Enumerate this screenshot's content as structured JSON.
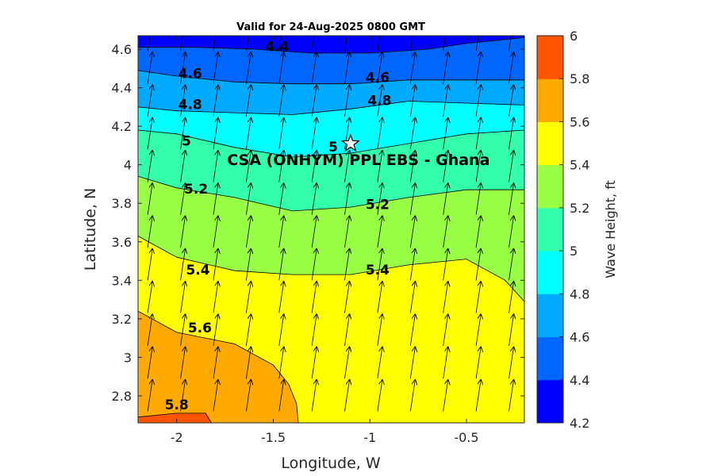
{
  "chart_data": {
    "type": "contour",
    "title": "Valid for 24-Aug-2025 0800 GMT",
    "xlabel": "Longitude, W",
    "ylabel": "Latitude, N",
    "colorbar_label": "Wave Height, ft",
    "xlim": [
      -2.2,
      -0.2
    ],
    "ylim": [
      2.66,
      4.67
    ],
    "x_ticks": [
      -2,
      -1.5,
      -1,
      -0.5
    ],
    "x_tick_labels": [
      "-2",
      "-1.5",
      "-1",
      "-0.5"
    ],
    "y_ticks": [
      2.8,
      3.0,
      3.2,
      3.4,
      3.6,
      3.8,
      4.0,
      4.2,
      4.4,
      4.6
    ],
    "y_tick_labels": [
      "2.8",
      "3",
      "3.2",
      "3.4",
      "3.6",
      "3.8",
      "4",
      "4.2",
      "4.4",
      "4.6"
    ],
    "colorbar": {
      "levels": [
        4.2,
        4.4,
        4.6,
        4.8,
        5.0,
        5.2,
        5.4,
        5.6,
        5.8,
        6.0
      ],
      "tick_labels": [
        "4.2",
        "4.4",
        "4.6",
        "4.8",
        "5",
        "5.2",
        "5.4",
        "5.6",
        "5.8",
        "6"
      ],
      "colors": [
        "#0000ff",
        "#0066ff",
        "#00aaff",
        "#00ffff",
        "#33ffaa",
        "#99ff44",
        "#ffff00",
        "#ffaa00",
        "#ff5500"
      ]
    },
    "contours": [
      {
        "value": 4.4,
        "x": [
          -2.2,
          -1.9,
          -1.6,
          -1.3,
          -1.0,
          -0.7,
          -0.5,
          -0.2
        ],
        "y": [
          4.61,
          4.61,
          4.6,
          4.58,
          4.58,
          4.6,
          4.63,
          4.66
        ]
      },
      {
        "value": 4.6,
        "x": [
          -2.2,
          -2.0,
          -1.7,
          -1.4,
          -1.1,
          -0.8,
          -0.5,
          -0.2
        ],
        "y": [
          4.49,
          4.46,
          4.43,
          4.42,
          4.42,
          4.44,
          4.44,
          4.44
        ]
      },
      {
        "value": 4.8,
        "x": [
          -2.2,
          -2.0,
          -1.7,
          -1.4,
          -1.1,
          -0.8,
          -0.5,
          -0.2
        ],
        "y": [
          4.3,
          4.28,
          4.27,
          4.26,
          4.29,
          4.33,
          4.32,
          4.31
        ]
      },
      {
        "value": 5.0,
        "x": [
          -2.2,
          -2.0,
          -1.7,
          -1.4,
          -1.1,
          -0.8,
          -0.5,
          -0.2
        ],
        "y": [
          4.18,
          4.16,
          4.09,
          4.04,
          4.06,
          4.11,
          4.16,
          4.18
        ]
      },
      {
        "value": 5.2,
        "x": [
          -2.2,
          -2.0,
          -1.7,
          -1.4,
          -1.1,
          -0.8,
          -0.5,
          -0.2
        ],
        "y": [
          3.94,
          3.88,
          3.83,
          3.76,
          3.78,
          3.83,
          3.87,
          3.87
        ]
      },
      {
        "value": 5.4,
        "x": [
          -2.2,
          -2.0,
          -1.7,
          -1.4,
          -1.1,
          -0.8,
          -0.5,
          -0.3,
          -0.2
        ],
        "y": [
          3.63,
          3.52,
          3.45,
          3.43,
          3.43,
          3.48,
          3.51,
          3.4,
          3.29
        ]
      },
      {
        "value": 5.6,
        "x": [
          -2.2,
          -2.0,
          -1.7,
          -1.5,
          -1.42,
          -1.38,
          -1.37
        ],
        "y": [
          3.24,
          3.13,
          3.07,
          2.96,
          2.86,
          2.76,
          2.66
        ]
      },
      {
        "value": 5.8,
        "x": [
          -2.2,
          -2.0,
          -1.85,
          -1.82
        ],
        "y": [
          2.69,
          2.71,
          2.71,
          2.66
        ]
      }
    ],
    "contour_labels": [
      {
        "text": "4.4",
        "x": -1.48,
        "y": 4.61
      },
      {
        "text": "4.6",
        "x": -1.93,
        "y": 4.47
      },
      {
        "text": "4.6",
        "x": -0.96,
        "y": 4.45
      },
      {
        "text": "4.8",
        "x": -1.93,
        "y": 4.31
      },
      {
        "text": "4.8",
        "x": -0.95,
        "y": 4.33
      },
      {
        "text": "5",
        "x": -1.95,
        "y": 4.12
      },
      {
        "text": "5",
        "x": -1.19,
        "y": 4.09
      },
      {
        "text": "5.2",
        "x": -1.9,
        "y": 3.87
      },
      {
        "text": "5.2",
        "x": -0.96,
        "y": 3.79
      },
      {
        "text": "5.4",
        "x": -1.89,
        "y": 3.45
      },
      {
        "text": "5.4",
        "x": -0.96,
        "y": 3.45
      },
      {
        "text": "5.6",
        "x": -1.88,
        "y": 3.15
      },
      {
        "text": "5.8",
        "x": -2.0,
        "y": 2.75
      }
    ],
    "site": {
      "label": "CSA (ONHYM) PPL EBS  - Ghana",
      "x": -1.1,
      "y": 4.11
    },
    "vectors": {
      "direction": "toward NNE",
      "u": 0.15,
      "v": 1.0,
      "x": [
        -2.15,
        -1.98,
        -1.81,
        -1.64,
        -1.47,
        -1.3,
        -1.13,
        -0.96,
        -0.79,
        -0.62,
        -0.45,
        -0.28
      ],
      "y": [
        2.72,
        2.89,
        3.06,
        3.23,
        3.4,
        3.57,
        3.74,
        3.91,
        4.08,
        4.25,
        4.42,
        4.59
      ]
    }
  }
}
